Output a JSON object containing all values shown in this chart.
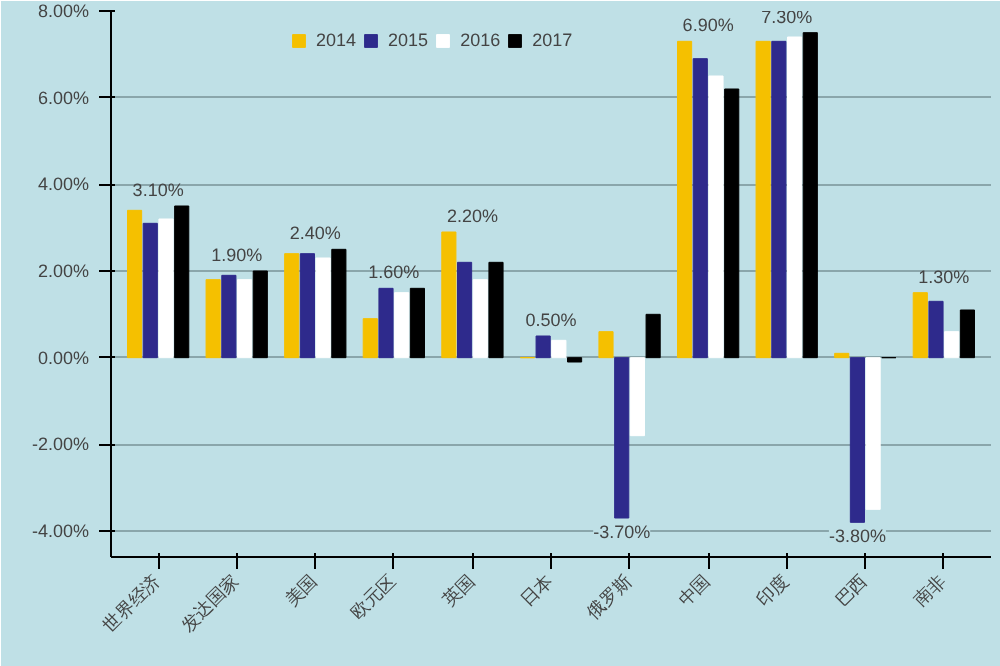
{
  "chart_data": {
    "type": "bar",
    "categories": [
      "世界经济",
      "发达国家",
      "美国",
      "欧元区",
      "英国",
      "日本",
      "俄罗斯",
      "中国",
      "印度",
      "巴西",
      "南非"
    ],
    "series": [
      {
        "name": "2014",
        "color": "#f5c000",
        "values": [
          3.4,
          1.8,
          2.4,
          0.9,
          2.9,
          0.0,
          0.6,
          7.3,
          7.3,
          0.1,
          1.5
        ]
      },
      {
        "name": "2015",
        "color": "#2e2a8c",
        "values": [
          3.1,
          1.9,
          2.4,
          1.6,
          2.2,
          0.5,
          -3.7,
          6.9,
          7.3,
          -3.8,
          1.3
        ],
        "value_labels": [
          "3.10%",
          "1.90%",
          "2.40%",
          "1.60%",
          "2.20%",
          "0.50%",
          "-3.70%",
          "6.90%",
          "7.30%",
          "-3.80%",
          "1.30%"
        ]
      },
      {
        "name": "2016",
        "color": "#ffffff",
        "values": [
          3.2,
          1.8,
          2.3,
          1.5,
          1.8,
          0.4,
          -1.8,
          6.5,
          7.4,
          -3.5,
          0.6
        ]
      },
      {
        "name": "2017",
        "color": "#000000",
        "values": [
          3.5,
          2.0,
          2.5,
          1.6,
          2.2,
          -0.1,
          1.0,
          6.2,
          7.5,
          0.0,
          1.1
        ]
      }
    ],
    "ylim": [
      -4.6,
      8
    ],
    "yticks": [
      {
        "value": -4,
        "label": "-4.00%"
      },
      {
        "value": -2,
        "label": "-2.00%"
      },
      {
        "value": 0,
        "label": "0.00%"
      },
      {
        "value": 2,
        "label": "2.00%"
      },
      {
        "value": 4,
        "label": "4.00%"
      },
      {
        "value": 6,
        "label": "6.00%"
      },
      {
        "value": 8,
        "label": "8.00%"
      }
    ],
    "grid": "y",
    "legend": "top"
  }
}
